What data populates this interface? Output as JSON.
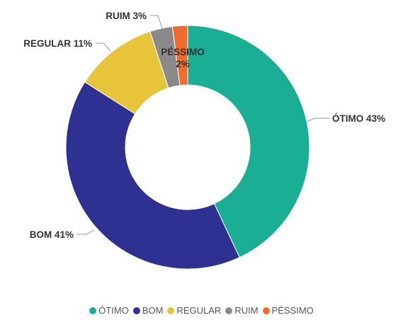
{
  "chart_data": {
    "type": "pie",
    "variant": "donut",
    "categories": [
      "ÓTIMO",
      "BOM",
      "REGULAR",
      "RUIM",
      "PÉSSIMO"
    ],
    "values": [
      43,
      41,
      11,
      3,
      2
    ],
    "unit": "%",
    "colors": [
      "#1aae94",
      "#2e3192",
      "#e8c43a",
      "#8a8a8a",
      "#f26b2e"
    ],
    "data_labels": [
      "ÓTIMO 43%",
      "BOM 41%",
      "REGULAR 11%",
      "RUIM 3%",
      "PÉSSIMO 2%"
    ],
    "legend": {
      "placement": "bottom",
      "entries": [
        "ÓTIMO",
        "BOM",
        "REGULAR",
        "RUIM",
        "PÉSSIMO"
      ]
    }
  }
}
